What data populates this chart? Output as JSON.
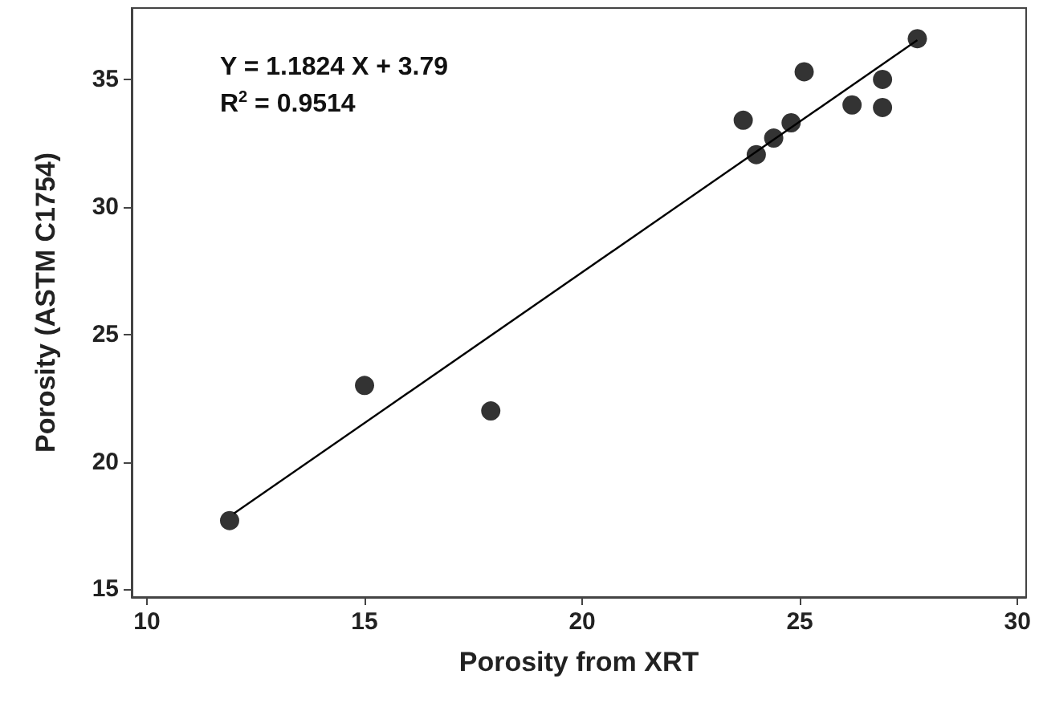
{
  "chart_data": {
    "type": "scatter",
    "xlabel": "Porosity from XRT",
    "ylabel": "Porosity (ASTM C1754)",
    "annotations": [
      "Y = 1.1824 X + 3.79",
      "R$^{2}$ = 0.9514"
    ],
    "xlim": [
      9.65,
      30.2
    ],
    "ylim": [
      14.7,
      37.8
    ],
    "xticks": [
      10,
      15,
      20,
      25,
      30
    ],
    "yticks": [
      15,
      20,
      25,
      30,
      35
    ],
    "grid": false,
    "series": [
      {
        "marker": "circle",
        "color": "#000000",
        "x": [
          11.9,
          15.0,
          17.9,
          23.7,
          24.0,
          24.4,
          24.8,
          25.1,
          26.2,
          26.9,
          26.9,
          27.7
        ],
        "values": [
          17.7,
          23.0,
          22.0,
          33.4,
          32.05,
          32.7,
          33.3,
          35.3,
          34.0,
          35.0,
          33.9,
          36.6
        ]
      },
      {
        "type": "line",
        "marker": "none",
        "color": "#000000",
        "x": [
          12,
          27.7
        ],
        "values": [
          17.98,
          36.54
        ]
      }
    ]
  }
}
